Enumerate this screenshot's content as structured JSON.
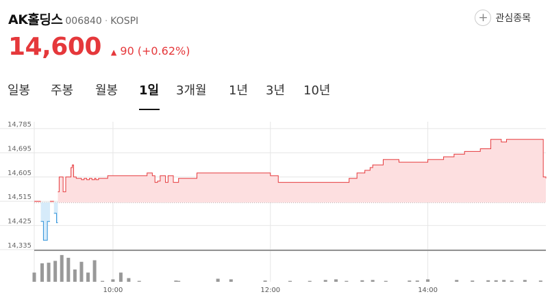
{
  "stock": {
    "name": "AK홀딩스",
    "code": "006840",
    "separator": "·",
    "exchange": "KOSPI",
    "price": "14,600",
    "change_arrow": "▲",
    "change_value": "90",
    "change_pct": "(+0.62%)"
  },
  "watchlist": {
    "icon": "plus-icon",
    "label": "관심종목"
  },
  "tabs": [
    {
      "label": "일봉",
      "active": false
    },
    {
      "label": "주봉",
      "active": false
    },
    {
      "label": "월봉",
      "active": false
    },
    {
      "label": "1일",
      "active": true
    },
    {
      "label": "3개월",
      "active": false
    },
    {
      "label": "1년",
      "active": false
    },
    {
      "label": "3년",
      "active": false
    },
    {
      "label": "10년",
      "active": false
    }
  ],
  "colors": {
    "up": "#e5383b",
    "down": "#2a8fd8",
    "up_fill": "#fddfe0",
    "down_fill": "#d6ebfa",
    "volume": "#999999",
    "grid": "#e6e6e6"
  },
  "chart_data": {
    "type": "line",
    "y_ticks": [
      "14,785",
      "14,695",
      "14,605",
      "14,515",
      "14,425",
      "14,335"
    ],
    "ylim": [
      14335,
      14785
    ],
    "x_ticks": [
      {
        "label": "10:00",
        "t": 60
      },
      {
        "label": "12:00",
        "t": 180
      },
      {
        "label": "14:00",
        "t": 300
      }
    ],
    "xlim": [
      0,
      390
    ],
    "previous_close": 14510,
    "grid": true,
    "series": [
      {
        "x": [
          0,
          2,
          4,
          5,
          7,
          8,
          9,
          10,
          12,
          13,
          14,
          15,
          17,
          18,
          19,
          20,
          21,
          22,
          24,
          26,
          28,
          29,
          30,
          32,
          34,
          36,
          38,
          40,
          42,
          44,
          46,
          47,
          49,
          52,
          56,
          60,
          64,
          70,
          76,
          80,
          86,
          88,
          90,
          92,
          94,
          96,
          98,
          100,
          102,
          104,
          106,
          108,
          110,
          112,
          114,
          116,
          118,
          120,
          122,
          124,
          126,
          128,
          130,
          132,
          134,
          136,
          140,
          150,
          160,
          170,
          176,
          178,
          180,
          186,
          190,
          196,
          200,
          204,
          210,
          216,
          220,
          226,
          234,
          240,
          246,
          252,
          256,
          258,
          260,
          266,
          270,
          278,
          290,
          300,
          312,
          320,
          324,
          328,
          336,
          340,
          348,
          350,
          354,
          356,
          360,
          368,
          376,
          380,
          388,
          390
        ],
        "y": [
          14515,
          14515,
          14515,
          14440,
          14370,
          14370,
          14370,
          14440,
          14515,
          14515,
          14515,
          14470,
          14435,
          14550,
          14605,
          14605,
          14605,
          14550,
          14605,
          14605,
          14640,
          14650,
          14605,
          14600,
          14600,
          14595,
          14600,
          14595,
          14600,
          14595,
          14600,
          14595,
          14600,
          14600,
          14610,
          14610,
          14610,
          14610,
          14610,
          14610,
          14620,
          14620,
          14610,
          14585,
          14590,
          14610,
          14610,
          14585,
          14610,
          14610,
          14585,
          14585,
          14600,
          14600,
          14600,
          14600,
          14600,
          14600,
          14600,
          14620,
          14620,
          14620,
          14620,
          14620,
          14620,
          14620,
          14620,
          14620,
          14620,
          14620,
          14620,
          14620,
          14610,
          14585,
          14585,
          14585,
          14585,
          14585,
          14585,
          14585,
          14585,
          14585,
          14585,
          14600,
          14620,
          14630,
          14640,
          14650,
          14650,
          14670,
          14670,
          14660,
          14660,
          14670,
          14680,
          14690,
          14690,
          14700,
          14700,
          14710,
          14745,
          14745,
          14745,
          14735,
          14745,
          14745,
          14745,
          14745,
          14605,
          14600
        ]
      }
    ],
    "volume": [
      {
        "t": 0,
        "v": 30
      },
      {
        "t": 6,
        "v": 60
      },
      {
        "t": 11,
        "v": 62
      },
      {
        "t": 16,
        "v": 68
      },
      {
        "t": 21,
        "v": 87
      },
      {
        "t": 26,
        "v": 78
      },
      {
        "t": 31,
        "v": 40
      },
      {
        "t": 36,
        "v": 65
      },
      {
        "t": 41,
        "v": 30
      },
      {
        "t": 46,
        "v": 70
      },
      {
        "t": 52,
        "v": 3
      },
      {
        "t": 60,
        "v": 8
      },
      {
        "t": 66,
        "v": 30
      },
      {
        "t": 72,
        "v": 12
      },
      {
        "t": 80,
        "v": 3
      },
      {
        "t": 110,
        "v": 3
      },
      {
        "t": 108,
        "v": 4
      },
      {
        "t": 140,
        "v": 10
      },
      {
        "t": 150,
        "v": 8
      },
      {
        "t": 176,
        "v": 4
      },
      {
        "t": 195,
        "v": 3
      },
      {
        "t": 210,
        "v": 3
      },
      {
        "t": 222,
        "v": 6
      },
      {
        "t": 230,
        "v": 8
      },
      {
        "t": 238,
        "v": 3
      },
      {
        "t": 250,
        "v": 5
      },
      {
        "t": 258,
        "v": 6
      },
      {
        "t": 268,
        "v": 3
      },
      {
        "t": 286,
        "v": 4
      },
      {
        "t": 292,
        "v": 4
      },
      {
        "t": 300,
        "v": 8
      },
      {
        "t": 322,
        "v": 6
      },
      {
        "t": 334,
        "v": 4
      },
      {
        "t": 346,
        "v": 5
      },
      {
        "t": 352,
        "v": 5
      },
      {
        "t": 358,
        "v": 6
      },
      {
        "t": 364,
        "v": 4
      },
      {
        "t": 374,
        "v": 6
      },
      {
        "t": 386,
        "v": 4
      }
    ]
  }
}
